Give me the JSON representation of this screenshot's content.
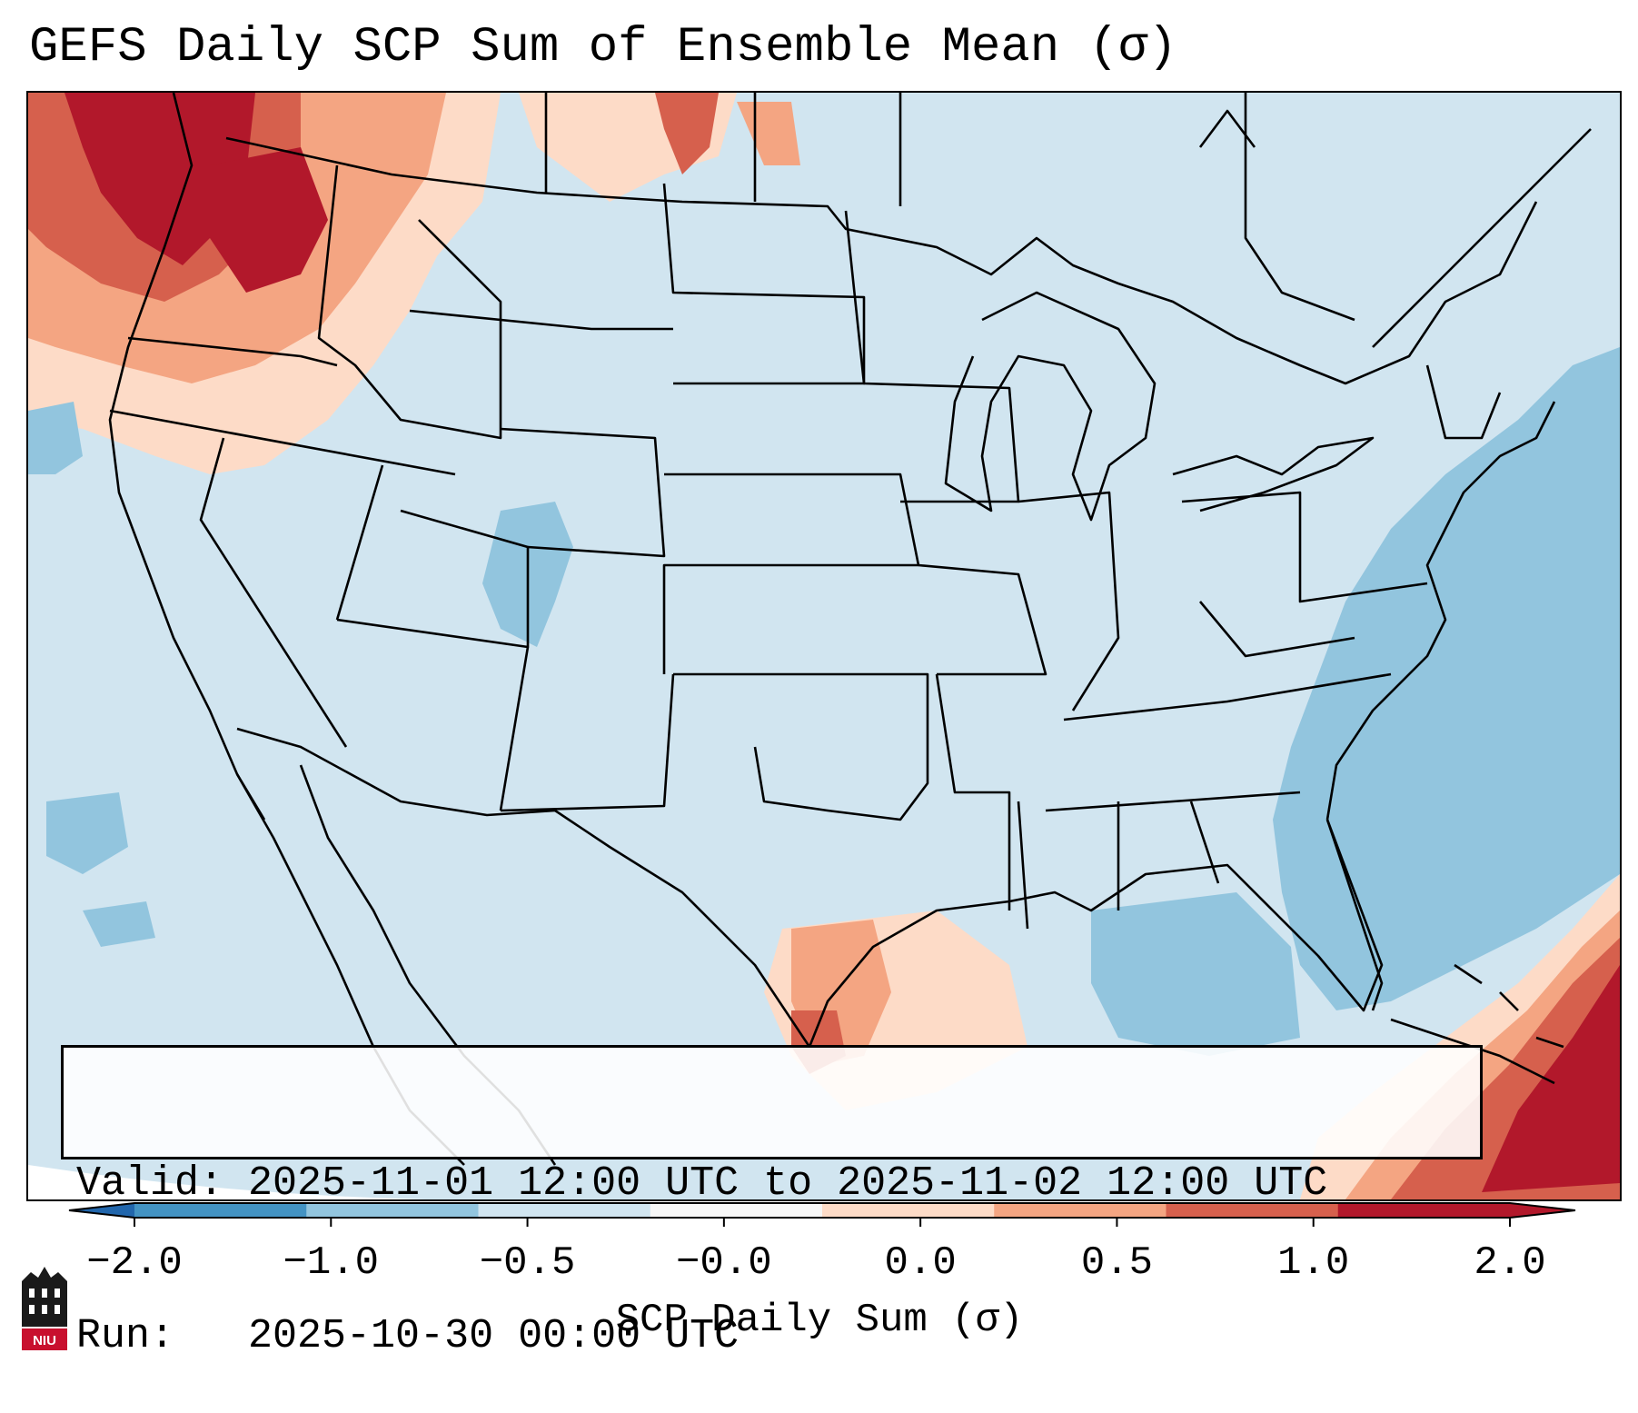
{
  "title": "GEFS Daily SCP Sum of Ensemble Mean (σ)",
  "info": {
    "valid_line": "Valid: 2025-11-01 12:00 UTC to 2025-11-02 12:00 UTC",
    "run_line": "Run:   2025-10-30 00:00 UTC"
  },
  "colorbar": {
    "label": "SCP Daily Sum (σ)",
    "ticks": [
      "−2.0",
      "−1.0",
      "−0.5",
      "−0.0",
      "0.0",
      "0.5",
      "1.0",
      "2.0"
    ],
    "colors": [
      "#4393c3",
      "#92c5de",
      "#d1e5f0",
      "#f7f7f7",
      "#fddbc7",
      "#f4a582",
      "#d6604d",
      "#b2182b"
    ],
    "extend_low_color": "#2166ac",
    "extend_high_color": "#b2182b"
  },
  "logo": {
    "text": "NIU"
  },
  "colors": {
    "map_background": "#d1e5f0",
    "boundary": "#000000"
  }
}
